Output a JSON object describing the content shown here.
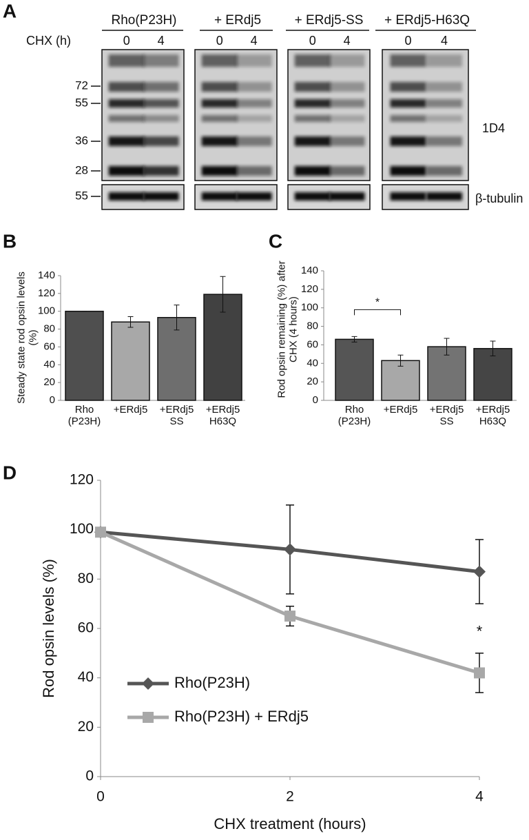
{
  "chart_data": [
    {
      "type": "blot",
      "panel": "A",
      "treatment_label": "CHX (h)",
      "groups": [
        {
          "name": "Rho(P23H)",
          "timepoints": [
            0,
            4
          ]
        },
        {
          "name": "+ ERdj5",
          "timepoints": [
            0,
            4
          ]
        },
        {
          "name": "+ ERdj5-SS",
          "timepoints": [
            0,
            4
          ]
        },
        {
          "name": "+ ERdj5-H63Q",
          "timepoints": [
            0,
            4
          ]
        }
      ],
      "markers": [
        72,
        55,
        36,
        28
      ],
      "loading_marker": 55,
      "antibody": "1D4",
      "loading_antibody": "β-tubulin"
    },
    {
      "type": "bar",
      "panel": "B",
      "ylabel": "Steady state rod opsin levels (%)",
      "categories": [
        "Rho (P23H)",
        "+ERdj5",
        "+ERdj5 SS",
        "+ERdj5 H63Q"
      ],
      "values": [
        100,
        88,
        93,
        119
      ],
      "errors": [
        0,
        6,
        14,
        20
      ],
      "colors": [
        "#4f4f4f",
        "#a8a8a8",
        "#6e6e6e",
        "#414141"
      ],
      "ylim": [
        0,
        140
      ],
      "yticks": [
        0,
        20,
        40,
        60,
        80,
        100,
        120,
        140
      ]
    },
    {
      "type": "bar",
      "panel": "C",
      "ylabel": "Rod opsin remaining (%) after CHX (4 hours)",
      "categories": [
        "Rho (P23H)",
        "+ERdj5",
        "+ERdj5 SS",
        "+ERdj5 H63Q"
      ],
      "values": [
        66,
        43,
        58,
        56
      ],
      "errors": [
        3,
        6,
        9,
        8
      ],
      "colors": [
        "#555555",
        "#a8a8a8",
        "#737373",
        "#454545"
      ],
      "annotation": "*",
      "ylim": [
        0,
        140
      ],
      "yticks": [
        0,
        20,
        40,
        60,
        80,
        100,
        120,
        140
      ]
    },
    {
      "type": "line",
      "panel": "D",
      "xlabel": "CHX treatment (hours)",
      "ylabel": "Rod opsin levels (%)",
      "x": [
        0,
        2,
        4
      ],
      "series": [
        {
          "name": "Rho(P23H)",
          "color": "#555555",
          "marker": "diamond",
          "values": [
            99,
            92,
            83
          ],
          "errors": [
            0,
            18,
            13
          ]
        },
        {
          "name": "Rho(P23H) + ERdj5",
          "color": "#a8a8a8",
          "marker": "square",
          "values": [
            99,
            65,
            42
          ],
          "errors": [
            0,
            4,
            8
          ]
        }
      ],
      "annotation": "*",
      "legend": "lower left",
      "xlim": [
        0,
        4
      ],
      "xticks": [
        0,
        2,
        4
      ],
      "ylim": [
        0,
        120
      ],
      "yticks": [
        0,
        20,
        40,
        60,
        80,
        100,
        120
      ]
    }
  ]
}
